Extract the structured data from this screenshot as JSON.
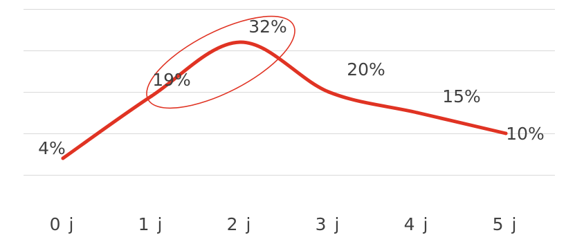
{
  "chart_data": {
    "type": "line",
    "categories": [
      "0 j",
      "1 j",
      "2 j",
      "3 j",
      "4 j",
      "5 j"
    ],
    "series": [
      {
        "values": [
          4,
          19,
          32,
          20,
          15,
          10
        ],
        "labels": [
          "4%",
          "19%",
          "32%",
          "20%",
          "15%",
          "10%"
        ],
        "color": "#e03323",
        "smooth": true
      }
    ],
    "ylim": [
      -5,
      40
    ],
    "grid": true,
    "highlight": {
      "shape": "ellipse",
      "categories": [
        "1 j",
        "2 j"
      ],
      "color": "#e03323"
    }
  }
}
